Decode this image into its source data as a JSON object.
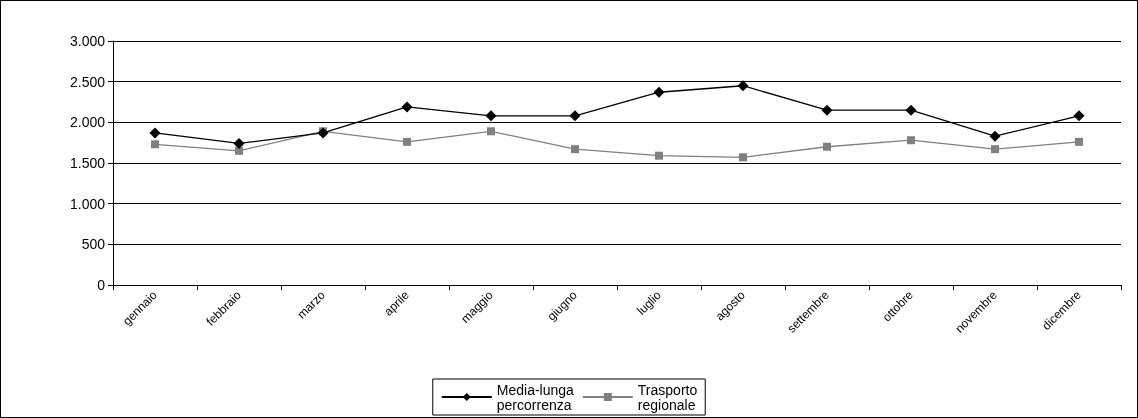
{
  "chart_data": {
    "type": "line",
    "categories": [
      "gennaio",
      "febbraio",
      "marzo",
      "aprile",
      "maggio",
      "giugno",
      "luglio",
      "agosto",
      "settembre",
      "ottobre",
      "novembre",
      "dicembre"
    ],
    "series": [
      {
        "name": "Media-lunga\npercorrenza",
        "color": "#000000",
        "marker": "diamond",
        "values": [
          1870,
          1740,
          1870,
          2190,
          2080,
          2080,
          2370,
          2450,
          2150,
          2150,
          1830,
          2080
        ]
      },
      {
        "name": "Trasporto\nregionale",
        "color": "#808080",
        "marker": "square",
        "values": [
          1730,
          1650,
          1890,
          1760,
          1890,
          1670,
          1590,
          1570,
          1700,
          1780,
          1670,
          1760
        ]
      }
    ],
    "ylim": [
      0,
      3000
    ],
    "yticks": [
      {
        "value": 0,
        "label": "0"
      },
      {
        "value": 500,
        "label": "500"
      },
      {
        "value": 1000,
        "label": "1.000"
      },
      {
        "value": 1500,
        "label": "1.500"
      },
      {
        "value": 2000,
        "label": "2.000"
      },
      {
        "value": 2500,
        "label": "2.500"
      },
      {
        "value": 3000,
        "label": "3.000"
      }
    ],
    "grid": "y",
    "legend": "bottom",
    "line_style": "solid"
  }
}
